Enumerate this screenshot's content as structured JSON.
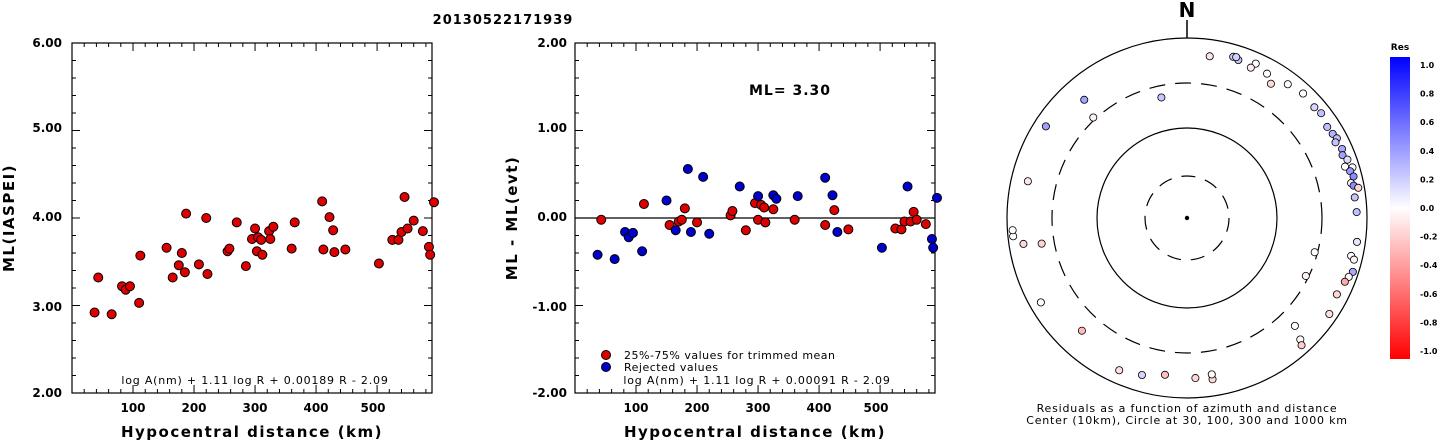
{
  "title": "20130522171939",
  "chart_data": [
    {
      "type": "scatter",
      "xlabel": "Hypocentral distance (km)",
      "ylabel": "ML(IASPEI)",
      "xlim": [
        0,
        590
      ],
      "ylim": [
        2.0,
        6.0
      ],
      "xticks": [
        "100",
        "200",
        "300",
        "400",
        "500"
      ],
      "yticks": [
        "2.00",
        "3.00",
        "4.00",
        "5.00",
        "6.00"
      ],
      "formula": "log A(nm) + 1.11 log R + 0.00189 R - 2.09",
      "series": [
        {
          "color": "#dd0000",
          "points": [
            [
              37,
              2.92
            ],
            [
              43,
              3.32
            ],
            [
              65,
              2.9
            ],
            [
              82,
              3.22
            ],
            [
              88,
              3.18
            ],
            [
              95,
              3.22
            ],
            [
              110,
              3.03
            ],
            [
              112,
              3.57
            ],
            [
              155,
              3.66
            ],
            [
              165,
              3.32
            ],
            [
              175,
              3.46
            ],
            [
              180,
              3.6
            ],
            [
              185,
              3.38
            ],
            [
              187,
              4.05
            ],
            [
              208,
              3.47
            ],
            [
              220,
              4.0
            ],
            [
              222,
              3.36
            ],
            [
              255,
              3.62
            ],
            [
              258,
              3.65
            ],
            [
              270,
              3.95
            ],
            [
              285,
              3.45
            ],
            [
              295,
              3.76
            ],
            [
              300,
              3.88
            ],
            [
              303,
              3.62
            ],
            [
              305,
              3.78
            ],
            [
              310,
              3.75
            ],
            [
              312,
              3.58
            ],
            [
              323,
              3.85
            ],
            [
              325,
              3.76
            ],
            [
              330,
              3.9
            ],
            [
              360,
              3.65
            ],
            [
              365,
              3.95
            ],
            [
              410,
              4.19
            ],
            [
              412,
              3.64
            ],
            [
              422,
              4.01
            ],
            [
              428,
              3.86
            ],
            [
              430,
              3.61
            ],
            [
              448,
              3.64
            ],
            [
              503,
              3.48
            ],
            [
              525,
              3.75
            ],
            [
              535,
              3.75
            ],
            [
              540,
              3.84
            ],
            [
              545,
              4.24
            ],
            [
              550,
              3.88
            ],
            [
              560,
              3.97
            ],
            [
              575,
              3.85
            ],
            [
              585,
              3.67
            ],
            [
              587,
              3.58
            ],
            [
              595,
              4.18
            ]
          ]
        }
      ]
    },
    {
      "type": "scatter",
      "xlabel": "Hypocentral distance (km)",
      "ylabel": "ML - ML(evt)",
      "xlim": [
        0,
        590
      ],
      "ylim": [
        -2.0,
        2.0
      ],
      "xticks": [
        "100",
        "200",
        "300",
        "400",
        "500"
      ],
      "yticks": [
        "-2.00",
        "-1.00",
        "0.00",
        "1.00",
        "2.00"
      ],
      "annotation": "ML= 3.30",
      "formula": "log A(nm) + 1.11 log R + 0.00091 R - 2.09",
      "legend": [
        {
          "label": "25%-75% values for trimmed mean",
          "color": "#dd0000"
        },
        {
          "label": "Rejected values",
          "color": "#0000cc"
        }
      ],
      "series": [
        {
          "color": "#dd0000",
          "points": [
            [
              43,
              -0.02
            ],
            [
              113,
              0.16
            ],
            [
              155,
              -0.08
            ],
            [
              170,
              -0.04
            ],
            [
              175,
              -0.02
            ],
            [
              180,
              0.11
            ],
            [
              200,
              -0.05
            ],
            [
              255,
              0.03
            ],
            [
              258,
              0.08
            ],
            [
              280,
              -0.14
            ],
            [
              295,
              0.17
            ],
            [
              300,
              -0.02
            ],
            [
              305,
              0.15
            ],
            [
              310,
              0.12
            ],
            [
              312,
              -0.05
            ],
            [
              325,
              0.1
            ],
            [
              360,
              -0.02
            ],
            [
              410,
              -0.08
            ],
            [
              425,
              0.09
            ],
            [
              448,
              -0.13
            ],
            [
              525,
              -0.12
            ],
            [
              535,
              -0.13
            ],
            [
              540,
              -0.04
            ],
            [
              550,
              -0.04
            ],
            [
              555,
              0.07
            ],
            [
              560,
              -0.02
            ],
            [
              575,
              -0.07
            ]
          ]
        },
        {
          "color": "#0000cc",
          "points": [
            [
              37,
              -0.42
            ],
            [
              65,
              -0.47
            ],
            [
              82,
              -0.16
            ],
            [
              88,
              -0.22
            ],
            [
              95,
              -0.17
            ],
            [
              110,
              -0.38
            ],
            [
              150,
              0.2
            ],
            [
              165,
              -0.14
            ],
            [
              185,
              0.56
            ],
            [
              190,
              -0.16
            ],
            [
              210,
              0.47
            ],
            [
              220,
              -0.18
            ],
            [
              270,
              0.36
            ],
            [
              300,
              0.25
            ],
            [
              325,
              0.26
            ],
            [
              330,
              0.22
            ],
            [
              365,
              0.25
            ],
            [
              410,
              0.46
            ],
            [
              422,
              0.26
            ],
            [
              430,
              -0.16
            ],
            [
              503,
              -0.34
            ],
            [
              545,
              0.36
            ],
            [
              585,
              -0.24
            ],
            [
              587,
              -0.34
            ],
            [
              595,
              0.23
            ]
          ]
        }
      ]
    },
    {
      "type": "scatter",
      "subtype": "polar residual map",
      "north_label": "N",
      "caption_line1": "Residuals as a function of azimuth and distance",
      "caption_line2": "Center (10km), Circle at 30, 100, 300 and 1000 km",
      "colorbar": {
        "title": "Res",
        "labels": [
          "1.0",
          "0.8",
          "0.6",
          "0.4",
          "0.2",
          "0.0",
          "-0.2",
          "-0.4",
          "-0.6",
          "-0.8",
          "-1.0"
        ],
        "max_color": "#0000ff",
        "zero_color": "#ffffff",
        "min_color": "#ff0000"
      },
      "points": [
        {
          "azimuth": 319,
          "distance_km": 535,
          "residual": 0.36
        },
        {
          "azimuth": 348,
          "distance_km": 225,
          "residual": 0.22
        },
        {
          "azimuth": 317,
          "distance_km": 320,
          "residual": -0.05
        },
        {
          "azimuth": 16,
          "distance_km": 720,
          "residual": 0.2
        },
        {
          "azimuth": 18,
          "distance_km": 690,
          "residual": 0.22
        },
        {
          "azimuth": 17,
          "distance_km": 730,
          "residual": 0.18
        },
        {
          "azimuth": 24,
          "distance_km": 745,
          "residual": 0.0
        },
        {
          "azimuth": 8,
          "distance_km": 640,
          "residual": -0.1
        },
        {
          "azimuth": 32,
          "distance_km": 560,
          "residual": -0.15
        },
        {
          "azimuth": 37,
          "distance_km": 715,
          "residual": 0.0
        },
        {
          "azimuth": 43,
          "distance_km": 770,
          "residual": 0.0
        },
        {
          "azimuth": 49,
          "distance_km": 740,
          "residual": 0.16
        },
        {
          "azimuth": 52,
          "distance_km": 770,
          "residual": 0.25
        },
        {
          "azimuth": 57,
          "distance_km": 710,
          "residual": 0.26
        },
        {
          "azimuth": 60,
          "distance_km": 730,
          "residual": 0.3
        },
        {
          "azimuth": 62,
          "distance_km": 760,
          "residual": 0.25
        },
        {
          "azimuth": 63,
          "distance_km": 700,
          "residual": 0.24
        },
        {
          "azimuth": 66,
          "distance_km": 760,
          "residual": 0.34
        },
        {
          "azimuth": 68,
          "distance_km": 720,
          "residual": 0.36
        },
        {
          "azimuth": 70,
          "distance_km": 780,
          "residual": 0.13
        },
        {
          "azimuth": 72,
          "distance_km": 690,
          "residual": 0.0
        },
        {
          "azimuth": 73,
          "distance_km": 830,
          "residual": 0.0
        },
        {
          "azimuth": 74,
          "distance_km": 760,
          "residual": 0.4
        },
        {
          "azimuth": 76,
          "distance_km": 800,
          "residual": 0.46
        },
        {
          "azimuth": 78,
          "distance_km": 720,
          "residual": -0.06
        },
        {
          "azimuth": 79,
          "distance_km": 760,
          "residual": 0.46
        },
        {
          "azimuth": 80,
          "distance_km": 850,
          "residual": -0.17
        },
        {
          "azimuth": 83,
          "distance_km": 745,
          "residual": 0.23
        },
        {
          "azimuth": 88,
          "distance_km": 760,
          "residual": 0.25
        },
        {
          "azimuth": 98,
          "distance_km": 800,
          "residual": 0.1
        },
        {
          "azimuth": 103,
          "distance_km": 735,
          "residual": 0.0
        },
        {
          "azimuth": 104,
          "distance_km": 810,
          "residual": -0.05
        },
        {
          "azimuth": 108,
          "distance_km": 860,
          "residual": 0.34
        },
        {
          "azimuth": 110,
          "distance_km": 810,
          "residual": -0.04
        },
        {
          "azimuth": 117,
          "distance_km": 730,
          "residual": -0.16
        },
        {
          "azimuth": 124,
          "distance_km": 800,
          "residual": -0.13
        },
        {
          "azimuth": 116,
          "distance_km": 280,
          "residual": -0.05
        },
        {
          "azimuth": 105,
          "distance_km": 280,
          "residual": 0.0
        },
        {
          "azimuth": 135,
          "distance_km": 480,
          "residual": 0.0
        },
        {
          "azimuth": 137,
          "distance_km": 690,
          "residual": 0.0
        },
        {
          "azimuth": 171,
          "distance_km": 640,
          "residual": -0.15
        },
        {
          "azimuth": 177,
          "distance_km": 590,
          "residual": -0.16
        },
        {
          "azimuth": 171,
          "distance_km": 560,
          "residual": 0.0
        },
        {
          "azimuth": 188,
          "distance_km": 560,
          "residual": -0.25
        },
        {
          "azimuth": 196,
          "distance_km": 640,
          "residual": 0.17
        },
        {
          "azimuth": 204,
          "distance_km": 700,
          "residual": -0.13
        },
        {
          "azimuth": 223,
          "distance_km": 500,
          "residual": -0.27
        },
        {
          "azimuth": 240,
          "distance_km": 740,
          "residual": 0.0
        },
        {
          "azimuth": 261,
          "distance_km": 680,
          "residual": -0.16
        },
        {
          "azimuth": 260,
          "distance_km": 420,
          "residual": -0.18
        },
        {
          "azimuth": 264,
          "distance_km": 870,
          "residual": 0.0
        },
        {
          "azimuth": 266,
          "distance_km": 870,
          "residual": 0.0
        },
        {
          "azimuth": 283,
          "distance_km": 640,
          "residual": -0.1
        },
        {
          "azimuth": 303,
          "distance_km": 730,
          "residual": 0.38
        },
        {
          "azimuth": 23,
          "distance_km": 640,
          "residual": -0.08
        },
        {
          "azimuth": 29,
          "distance_km": 670,
          "residual": 0.0
        },
        {
          "azimuth": 112,
          "distance_km": 770,
          "residual": -0.34
        },
        {
          "azimuth": 138,
          "distance_km": 790,
          "residual": -0.2
        }
      ]
    }
  ]
}
